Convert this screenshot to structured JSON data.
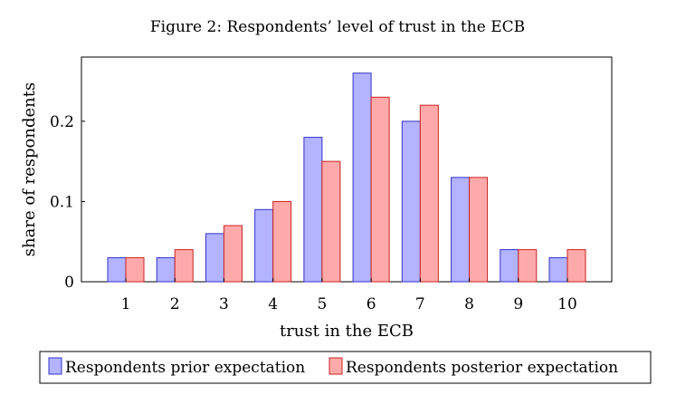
{
  "chart_data": {
    "type": "bar",
    "title": "Figure 2: Respondents’ level of trust in the ECB",
    "xlabel": "trust in the ECB",
    "ylabel": "share of respondents",
    "categories": [
      "1",
      "2",
      "3",
      "4",
      "5",
      "6",
      "7",
      "8",
      "9",
      "10"
    ],
    "ylim": [
      0,
      0.28
    ],
    "yticks": [
      0,
      0.1,
      0.2
    ],
    "ytick_labels": [
      "0",
      "0.1",
      "0.2"
    ],
    "grid": false,
    "legend_position": "bottom",
    "series": [
      {
        "name": "Respondents prior expectation",
        "values": [
          0.03,
          0.03,
          0.06,
          0.09,
          0.18,
          0.26,
          0.2,
          0.13,
          0.04,
          0.03
        ],
        "fill": "#b3b3ff",
        "stroke": "#3333cc"
      },
      {
        "name": "Respondents posterior expectation",
        "values": [
          0.03,
          0.04,
          0.07,
          0.1,
          0.15,
          0.23,
          0.22,
          0.13,
          0.04,
          0.04
        ],
        "fill": "#ffaaaa",
        "stroke": "#cc2222"
      }
    ]
  }
}
